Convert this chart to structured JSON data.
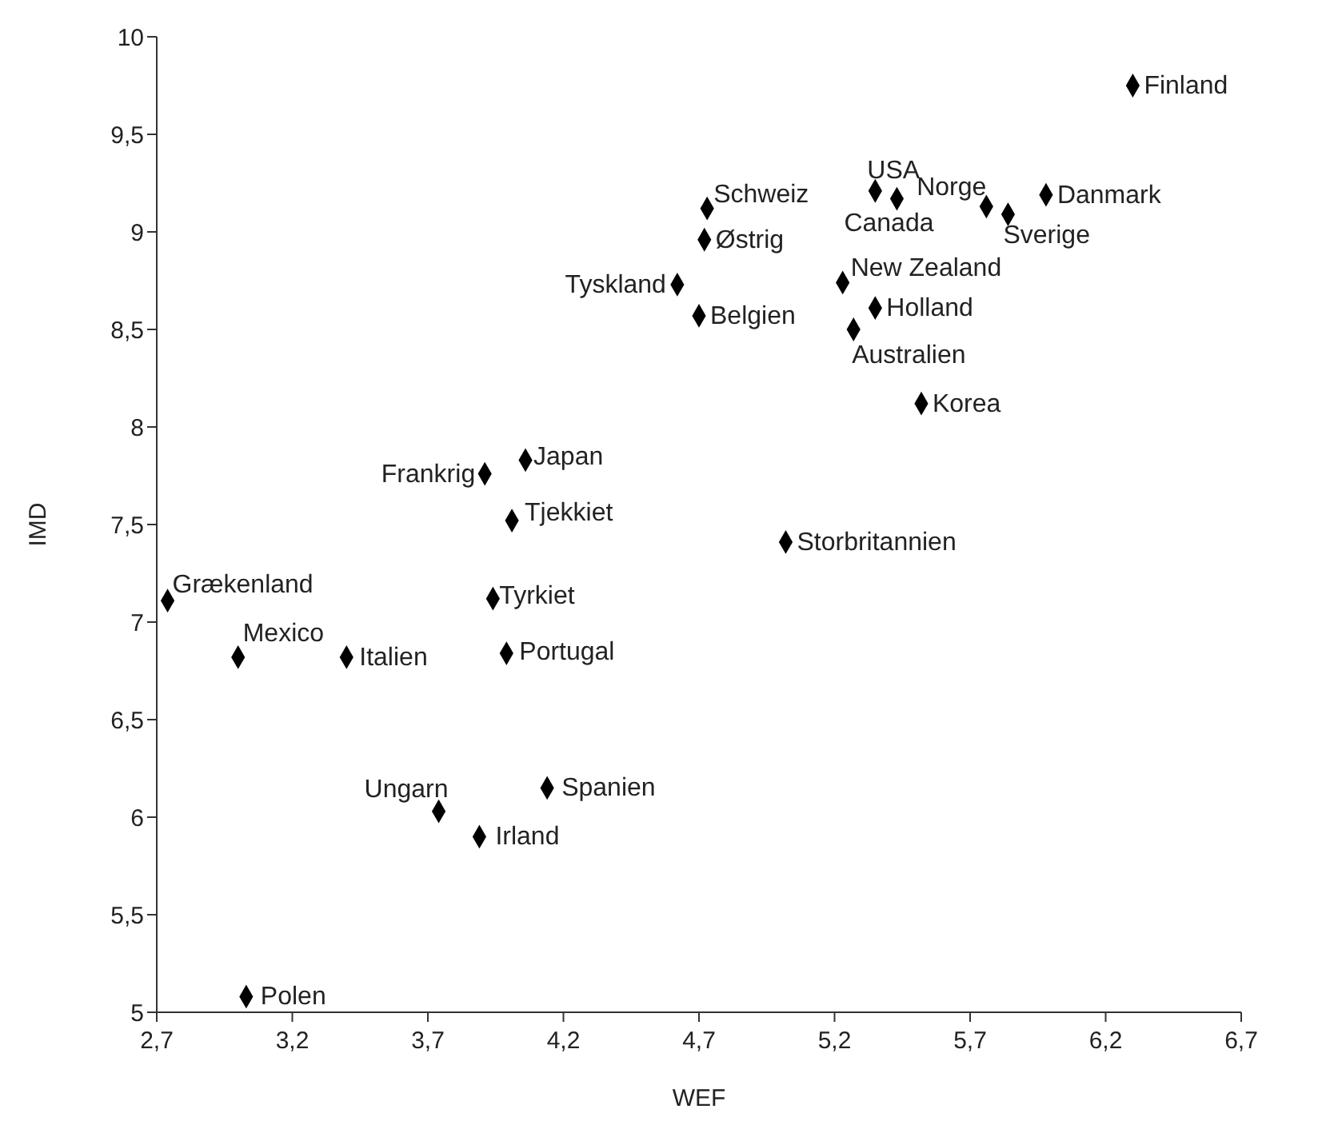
{
  "chart_data": {
    "type": "scatter",
    "xlabel": "WEF",
    "ylabel": "IMD",
    "marker": "diamond",
    "grid": false,
    "legend": false,
    "xlim": [
      2.7,
      6.7
    ],
    "ylim": [
      5,
      10
    ],
    "xticks": [
      {
        "value": 2.7,
        "label": "2,7"
      },
      {
        "value": 3.2,
        "label": "3,2"
      },
      {
        "value": 3.7,
        "label": "3,7"
      },
      {
        "value": 4.2,
        "label": "4,2"
      },
      {
        "value": 4.7,
        "label": "4,7"
      },
      {
        "value": 5.2,
        "label": "5,2"
      },
      {
        "value": 5.7,
        "label": "5,7"
      },
      {
        "value": 6.2,
        "label": "6,2"
      },
      {
        "value": 6.7,
        "label": "6,7"
      }
    ],
    "yticks": [
      5,
      {
        "value": 5.5,
        "label": "5,5"
      },
      6,
      {
        "value": 6.5,
        "label": "6,5"
      },
      7,
      {
        "value": 7.5,
        "label": "7,5"
      },
      8,
      {
        "value": 8.5,
        "label": "8,5"
      },
      9,
      {
        "value": 9.5,
        "label": "9,5"
      },
      10
    ],
    "series": [
      {
        "color": "#000000",
        "x": [
          6.3,
          5.35,
          5.43,
          5.76,
          5.84,
          5.98,
          4.73,
          4.72,
          4.62,
          4.7,
          5.23,
          5.35,
          5.27,
          5.52,
          4.06,
          3.91,
          4.01,
          5.02,
          2.74,
          3.94,
          3.0,
          3.4,
          3.99,
          3.74,
          4.14,
          3.89,
          3.03
        ],
        "values": [
          9.75,
          9.21,
          9.17,
          9.13,
          9.09,
          9.19,
          9.12,
          8.96,
          8.73,
          8.57,
          8.74,
          8.61,
          8.5,
          8.12,
          7.83,
          7.76,
          7.52,
          7.41,
          7.11,
          7.12,
          6.82,
          6.82,
          6.84,
          6.03,
          6.15,
          5.9,
          5.08
        ]
      }
    ],
    "annotations": [
      {
        "text": "Finland",
        "x": 6.3,
        "y": 9.75
      },
      {
        "text": "USA",
        "x": 5.35,
        "y": 9.21
      },
      {
        "text": "Canada",
        "x": 5.43,
        "y": 9.17
      },
      {
        "text": "Norge",
        "x": 5.76,
        "y": 9.13
      },
      {
        "text": "Sverige",
        "x": 5.84,
        "y": 9.09
      },
      {
        "text": "Danmark",
        "x": 5.98,
        "y": 9.19
      },
      {
        "text": "Schweiz",
        "x": 4.73,
        "y": 9.12
      },
      {
        "text": "Østrig",
        "x": 4.72,
        "y": 8.96
      },
      {
        "text": "Tyskland",
        "x": 4.62,
        "y": 8.73
      },
      {
        "text": "Belgien",
        "x": 4.7,
        "y": 8.57
      },
      {
        "text": "New Zealand",
        "x": 5.23,
        "y": 8.74
      },
      {
        "text": "Holland",
        "x": 5.35,
        "y": 8.61
      },
      {
        "text": "Australien",
        "x": 5.27,
        "y": 8.5
      },
      {
        "text": "Korea",
        "x": 5.52,
        "y": 8.12
      },
      {
        "text": "Japan",
        "x": 4.06,
        "y": 7.83
      },
      {
        "text": "Frankrig",
        "x": 3.91,
        "y": 7.76
      },
      {
        "text": "Tjekkiet",
        "x": 4.01,
        "y": 7.52
      },
      {
        "text": "Storbritannien",
        "x": 5.02,
        "y": 7.41
      },
      {
        "text": "Grækenland",
        "x": 2.74,
        "y": 7.11
      },
      {
        "text": "Tyrkiet",
        "x": 3.94,
        "y": 7.12
      },
      {
        "text": "Mexico",
        "x": 3.0,
        "y": 6.82
      },
      {
        "text": "Italien",
        "x": 3.4,
        "y": 6.82
      },
      {
        "text": "Portugal",
        "x": 3.99,
        "y": 6.84
      },
      {
        "text": "Ungarn",
        "x": 3.74,
        "y": 6.03
      },
      {
        "text": "Spanien",
        "x": 4.14,
        "y": 6.15
      },
      {
        "text": "Irland",
        "x": 3.89,
        "y": 5.9
      },
      {
        "text": "Polen",
        "x": 3.03,
        "y": 5.08
      }
    ]
  }
}
